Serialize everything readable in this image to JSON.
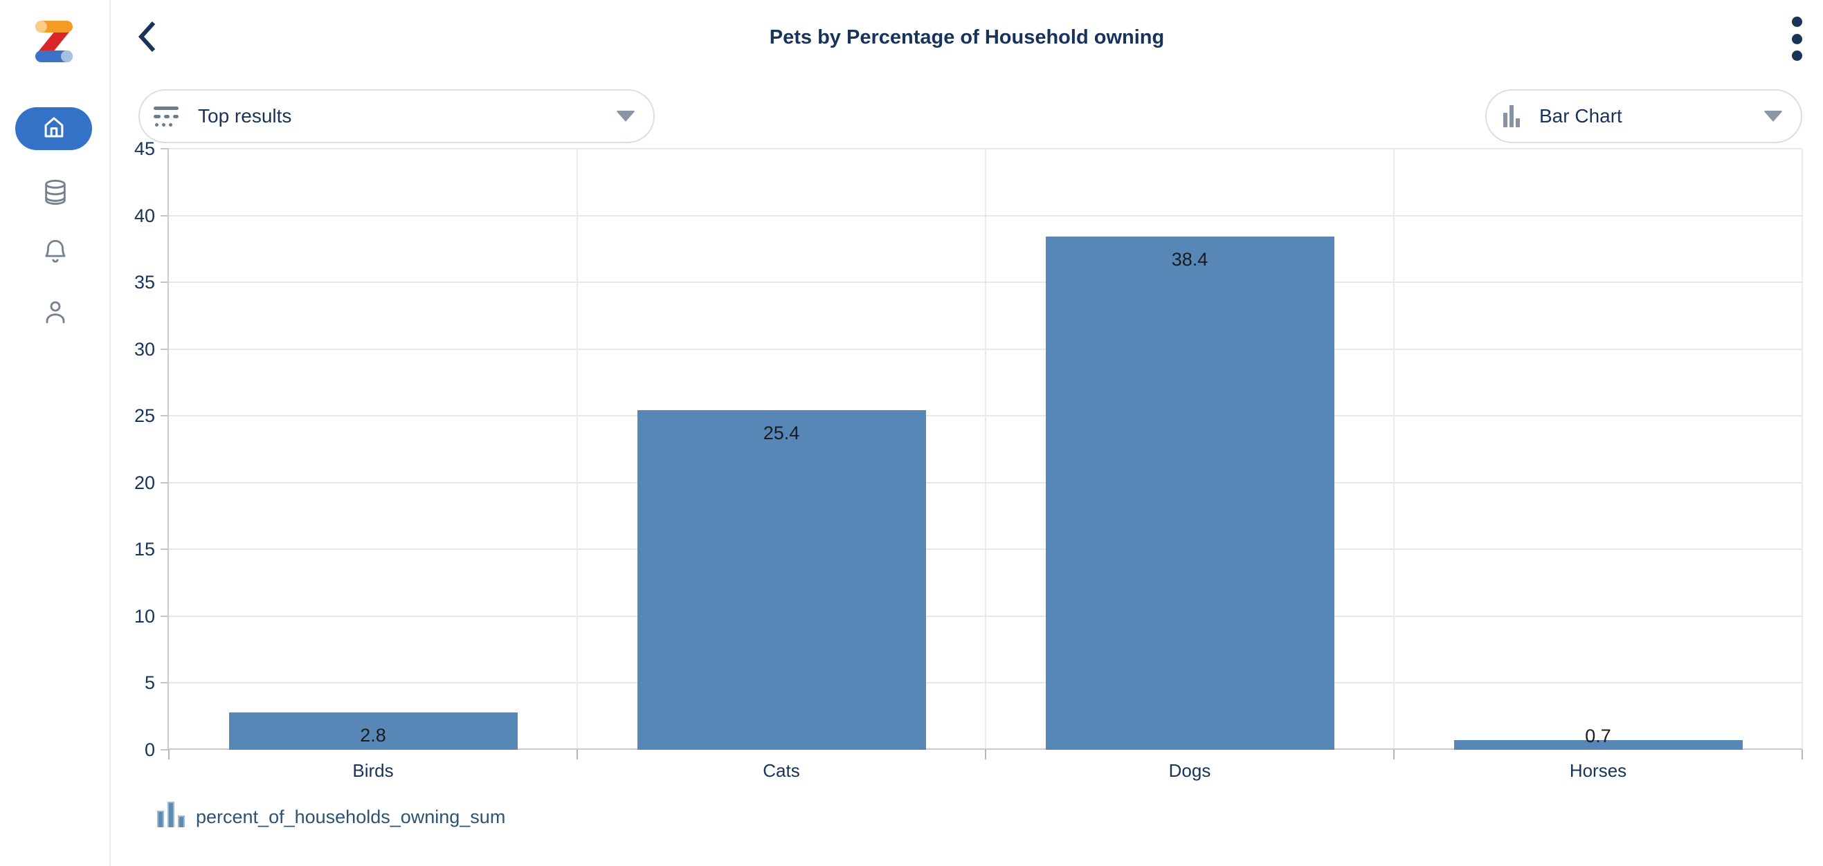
{
  "header": {
    "title": "Pets by Percentage of Household owning"
  },
  "controls": {
    "results_filter": {
      "label": "Top results"
    },
    "chart_type": {
      "label": "Bar Chart"
    }
  },
  "sidebar": {
    "items": [
      {
        "id": "home",
        "icon": "home-icon",
        "active": true
      },
      {
        "id": "data",
        "icon": "database-icon",
        "active": false
      },
      {
        "id": "notifications",
        "icon": "bell-icon",
        "active": false
      },
      {
        "id": "profile",
        "icon": "person-icon",
        "active": false
      }
    ]
  },
  "chart_data": {
    "type": "bar",
    "title": "Pets by Percentage of Household owning",
    "categories": [
      "Birds",
      "Cats",
      "Dogs",
      "Horses"
    ],
    "values": [
      2.8,
      25.4,
      38.4,
      0.7
    ],
    "series": [
      {
        "name": "percent_of_households_owning_sum",
        "values": [
          2.8,
          25.4,
          38.4,
          0.7
        ]
      }
    ],
    "xlabel": "",
    "ylabel": "",
    "ylim": [
      0,
      45
    ],
    "ytick_step": 5,
    "grid": true,
    "legend": [
      "percent_of_households_owning_sum"
    ],
    "legend_position": "bottom-left",
    "bar_color": "#5787B7",
    "value_labels": [
      "2.8",
      "25.4",
      "38.4",
      "0.7"
    ]
  },
  "legend": {
    "label": "percent_of_households_owning_sum"
  },
  "colors": {
    "accent_blue": "#3472C8",
    "navy_text": "#17335B",
    "bar_fill": "#5787B7",
    "icon_gray": "#76818F"
  }
}
